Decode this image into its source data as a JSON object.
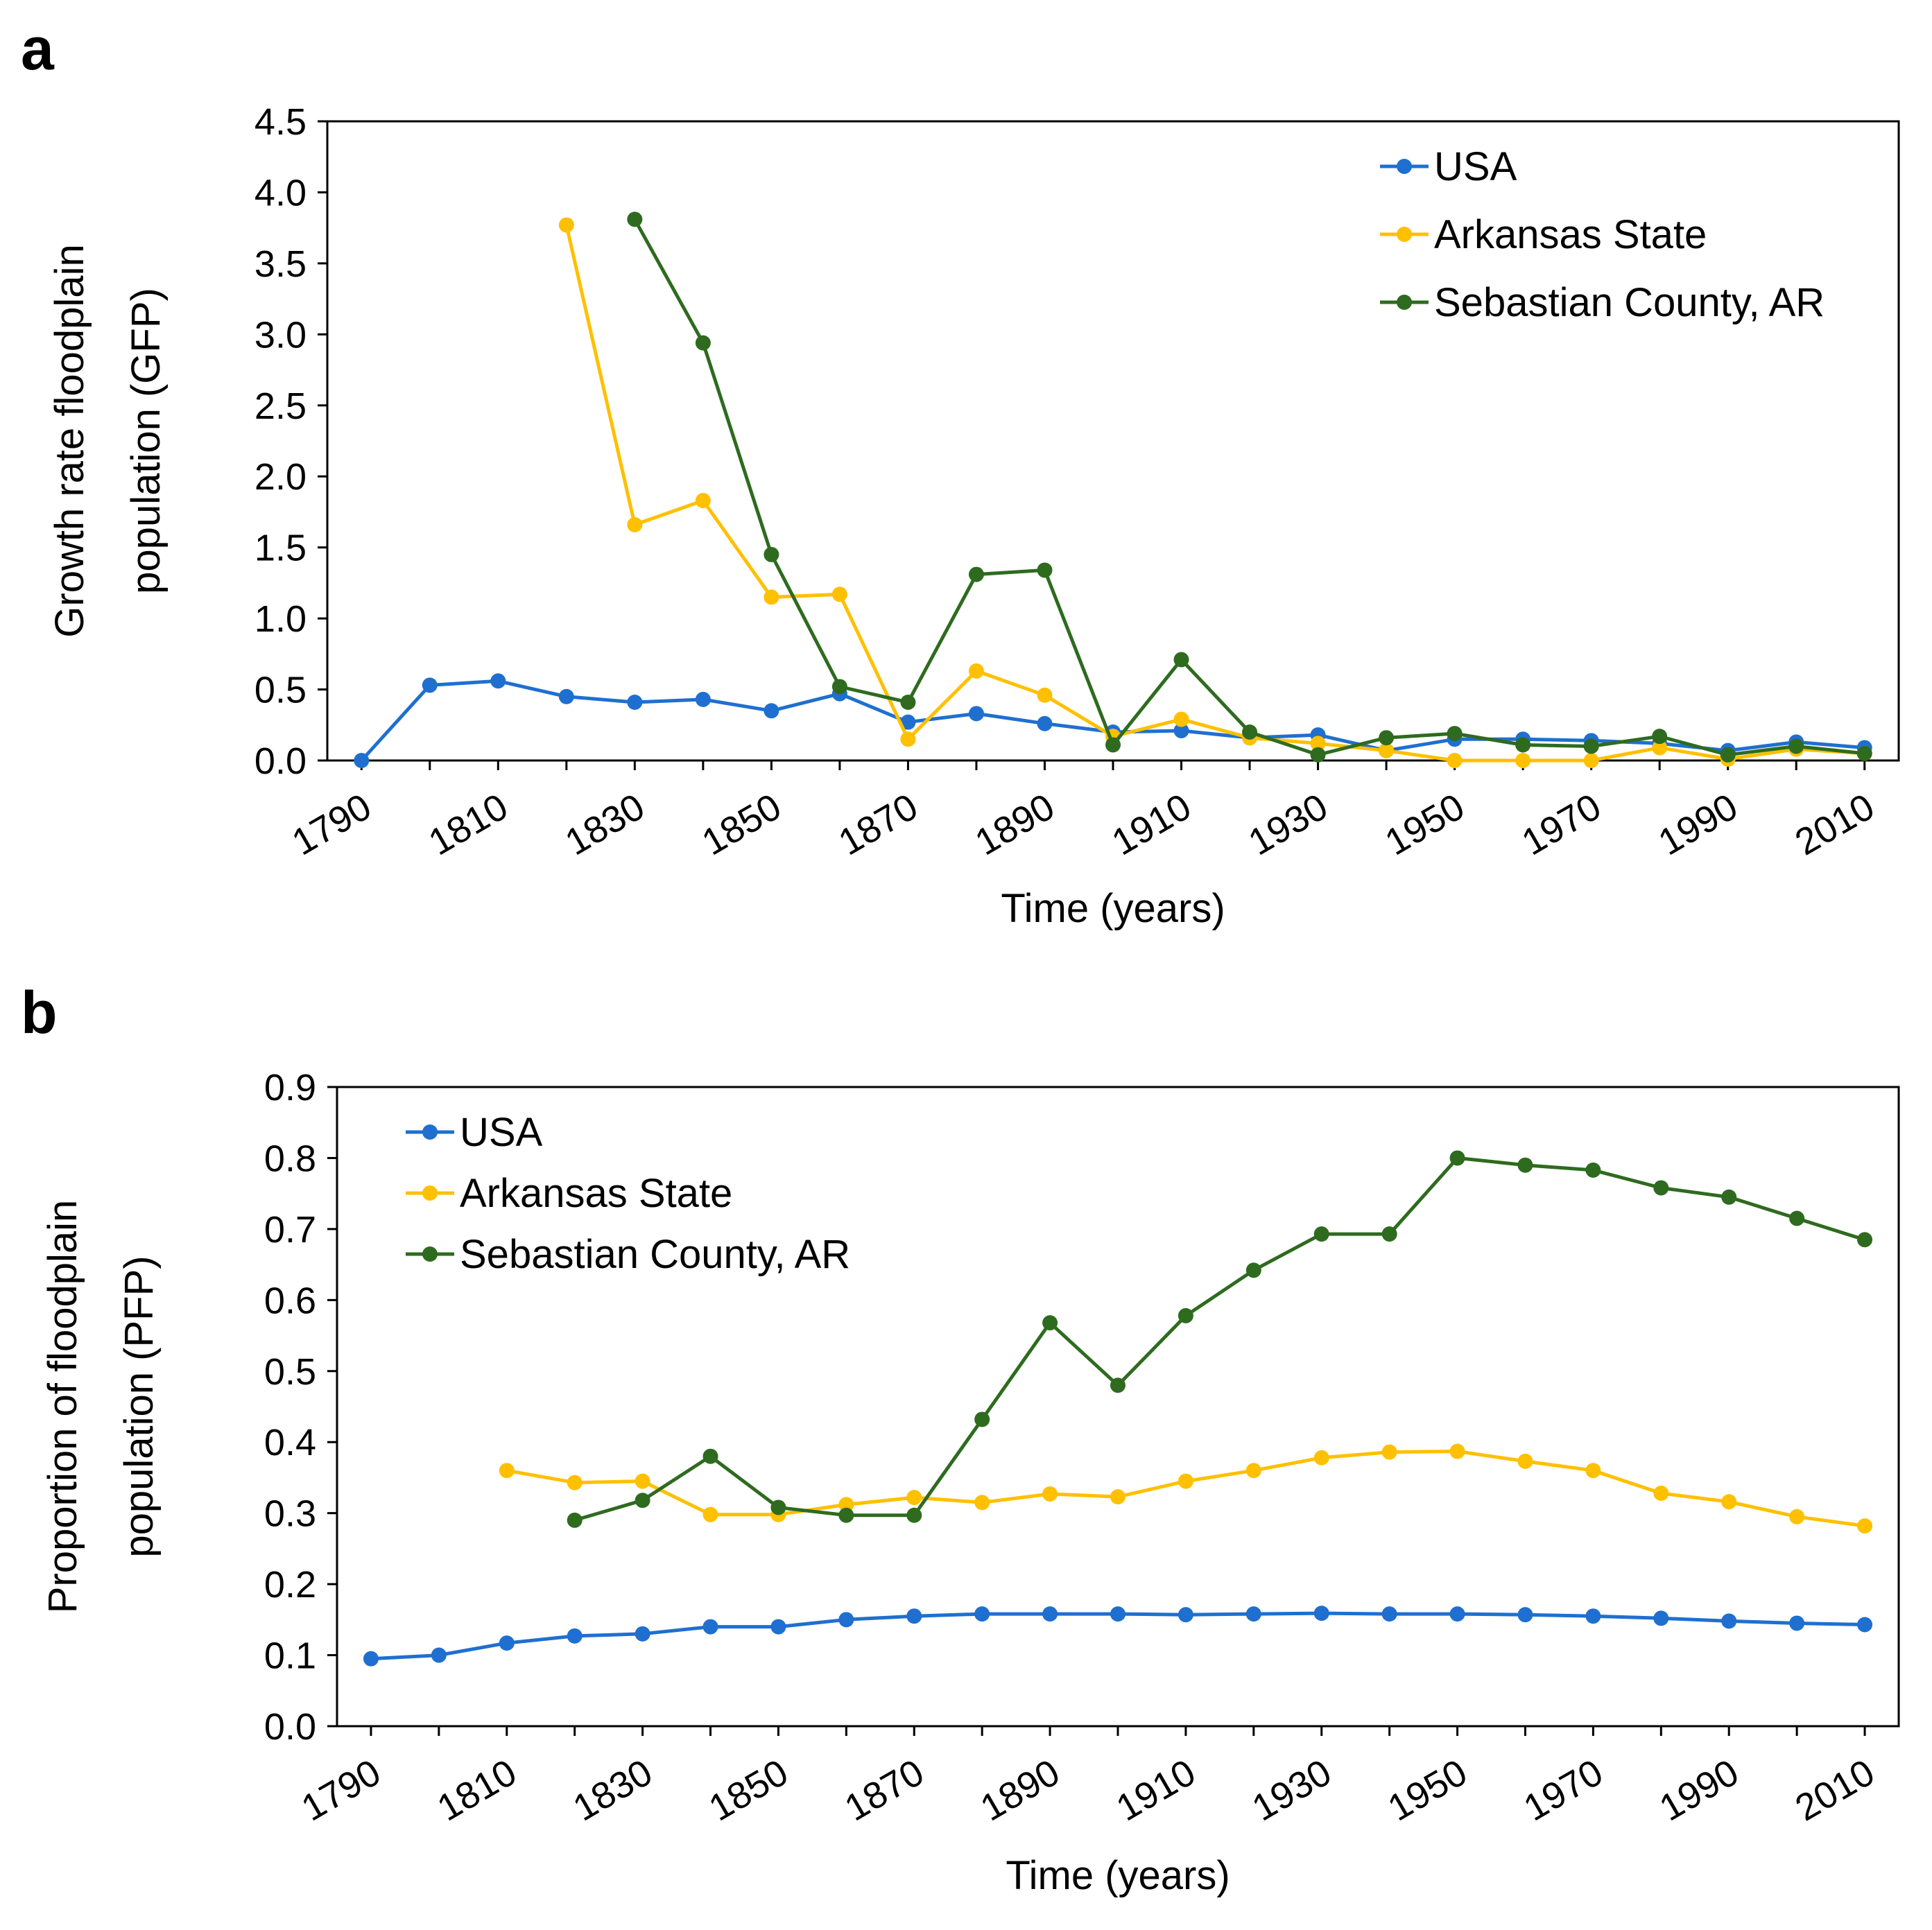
{
  "panels": [
    {
      "panel_label": "a",
      "legend_position": "top-right",
      "colors": {
        "USA": "#1F6FD0",
        "Arkansas State": "#FFC000",
        "Sebastian County, AR": "#2E6B1F"
      }
    },
    {
      "panel_label": "b",
      "legend_position": "top-left",
      "colors": {
        "USA": "#1F6FD0",
        "Arkansas State": "#FFC000",
        "Sebastian County, AR": "#2E6B1F"
      }
    }
  ],
  "chart_data": [
    {
      "type": "line",
      "title": "",
      "xlabel": "Time (years)",
      "ylabel_lines": [
        "Growth rate floodplain",
        "population (GFP)"
      ],
      "x": [
        1790,
        1800,
        1810,
        1820,
        1830,
        1840,
        1850,
        1860,
        1870,
        1880,
        1890,
        1900,
        1910,
        1920,
        1930,
        1940,
        1950,
        1960,
        1970,
        1980,
        1990,
        2000,
        2010
      ],
      "x_tick_labels": [
        "1790",
        "1810",
        "1830",
        "1850",
        "1870",
        "1890",
        "1910",
        "1930",
        "1950",
        "1970",
        "1990",
        "2010"
      ],
      "y_tick_labels": [
        "0.0",
        "0.5",
        "1.0",
        "1.5",
        "2.0",
        "2.5",
        "3.0",
        "3.5",
        "4.0",
        "4.5"
      ],
      "xlim": [
        1785,
        2015
      ],
      "ylim": [
        0,
        4.5
      ],
      "grid": false,
      "series": [
        {
          "name": "USA",
          "values": [
            0.0,
            0.53,
            0.56,
            0.45,
            0.41,
            0.43,
            0.35,
            0.47,
            0.27,
            0.33,
            0.26,
            0.2,
            0.21,
            0.16,
            0.18,
            0.07,
            0.15,
            0.15,
            0.14,
            0.12,
            0.07,
            0.13,
            0.09
          ]
        },
        {
          "name": "Arkansas State",
          "values": [
            null,
            null,
            null,
            3.77,
            1.66,
            1.83,
            1.15,
            1.17,
            0.15,
            0.63,
            0.46,
            0.17,
            0.29,
            0.16,
            0.12,
            0.07,
            0.0,
            0.0,
            0.0,
            0.09,
            0.01,
            0.08,
            0.05
          ]
        },
        {
          "name": "Sebastian County, AR",
          "values": [
            null,
            null,
            null,
            null,
            3.81,
            2.94,
            1.45,
            0.52,
            0.41,
            1.31,
            1.34,
            0.11,
            0.71,
            0.2,
            0.04,
            0.16,
            0.19,
            0.11,
            0.1,
            0.17,
            0.04,
            0.1,
            0.05
          ]
        }
      ]
    },
    {
      "type": "line",
      "title": "",
      "xlabel": "Time (years)",
      "ylabel_lines": [
        "Proportion of floodplain",
        "population (PFP)"
      ],
      "x": [
        1790,
        1800,
        1810,
        1820,
        1830,
        1840,
        1850,
        1860,
        1870,
        1880,
        1890,
        1900,
        1910,
        1920,
        1930,
        1940,
        1950,
        1960,
        1970,
        1980,
        1990,
        2000,
        2010
      ],
      "x_tick_labels": [
        "1790",
        "1810",
        "1830",
        "1850",
        "1870",
        "1890",
        "1910",
        "1930",
        "1950",
        "1970",
        "1990",
        "2010"
      ],
      "y_tick_labels": [
        "0.0",
        "0.1",
        "0.2",
        "0.3",
        "0.4",
        "0.5",
        "0.6",
        "0.7",
        "0.8",
        "0.9"
      ],
      "xlim": [
        1785,
        2015
      ],
      "ylim": [
        0,
        0.9
      ],
      "grid": false,
      "series": [
        {
          "name": "USA",
          "values": [
            0.095,
            0.1,
            0.117,
            0.127,
            0.13,
            0.14,
            0.14,
            0.15,
            0.155,
            0.158,
            0.158,
            0.158,
            0.157,
            0.158,
            0.159,
            0.158,
            0.158,
            0.157,
            0.155,
            0.152,
            0.148,
            0.145,
            0.143
          ]
        },
        {
          "name": "Arkansas State",
          "values": [
            null,
            null,
            0.36,
            0.343,
            0.345,
            0.298,
            0.298,
            0.312,
            0.322,
            0.315,
            0.327,
            0.323,
            0.345,
            0.36,
            0.378,
            0.386,
            0.387,
            0.373,
            0.36,
            0.328,
            0.316,
            0.295,
            0.282
          ]
        },
        {
          "name": "Sebastian County, AR",
          "values": [
            null,
            null,
            null,
            0.29,
            0.318,
            0.38,
            0.308,
            0.297,
            0.297,
            0.432,
            0.568,
            0.48,
            0.578,
            0.642,
            0.693,
            0.693,
            0.8,
            0.79,
            0.783,
            0.758,
            0.745,
            0.715,
            0.685
          ]
        }
      ]
    }
  ]
}
